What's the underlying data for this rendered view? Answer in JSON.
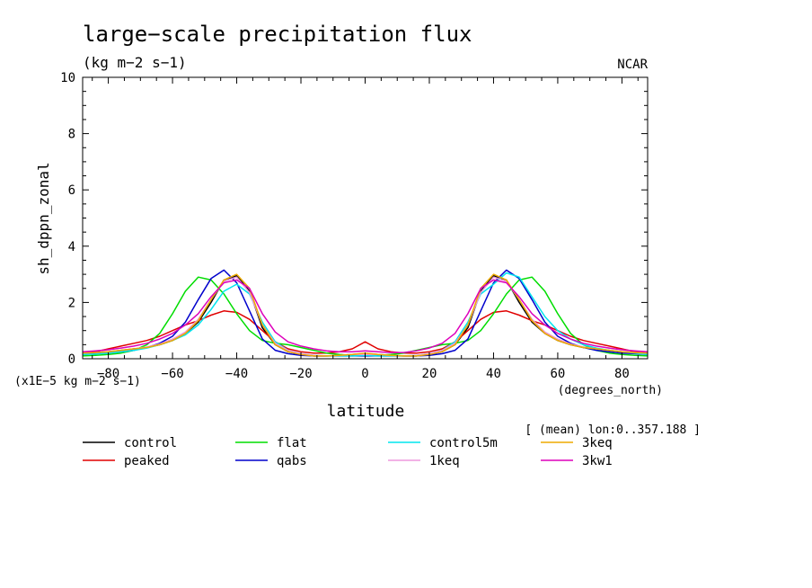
{
  "chart_data": {
    "type": "line",
    "title": "large−scale precipitation flux",
    "subtitle": "(kg m−2 s−1)",
    "credit": "NCAR",
    "xlabel": "latitude",
    "x_units": "(degrees_north)",
    "ylabel": "sh_dppn_zonal",
    "y_scale_note": "(x1E−5 kg m−2 s−1)",
    "mean_note": "[ (mean) lon:0..357.188 ]",
    "xlim": [
      -88,
      88
    ],
    "ylim": [
      0,
      10
    ],
    "x_ticks": [
      -80,
      -60,
      -40,
      -20,
      0,
      20,
      40,
      60,
      80
    ],
    "x_tick_labels": [
      "−80",
      "−60",
      "−40",
      "−20",
      "0",
      "20",
      "40",
      "60",
      "80"
    ],
    "y_ticks": [
      0,
      2,
      4,
      6,
      8,
      10
    ],
    "y_tick_labels": [
      "0",
      "2",
      "4",
      "6",
      "8",
      "10"
    ],
    "x": [
      -88,
      -84,
      -80,
      -76,
      -72,
      -68,
      -64,
      -60,
      -56,
      -52,
      -48,
      -44,
      -40,
      -36,
      -32,
      -28,
      -24,
      -20,
      -16,
      -12,
      -8,
      -4,
      0,
      4,
      8,
      12,
      16,
      20,
      24,
      28,
      32,
      36,
      40,
      44,
      48,
      52,
      56,
      60,
      64,
      68,
      72,
      76,
      80,
      84,
      88
    ],
    "series": [
      {
        "name": "control",
        "color": "#000000",
        "values": [
          0.2,
          0.22,
          0.25,
          0.3,
          0.35,
          0.4,
          0.5,
          0.65,
          0.9,
          1.3,
          2.0,
          2.8,
          2.95,
          2.4,
          1.1,
          0.5,
          0.25,
          0.15,
          0.1,
          0.1,
          0.12,
          0.15,
          0.18,
          0.15,
          0.12,
          0.1,
          0.1,
          0.15,
          0.25,
          0.5,
          1.1,
          2.4,
          2.95,
          2.8,
          2.0,
          1.3,
          0.9,
          0.65,
          0.5,
          0.4,
          0.35,
          0.3,
          0.25,
          0.22,
          0.2
        ]
      },
      {
        "name": "peaked",
        "color": "#e00000",
        "values": [
          0.2,
          0.25,
          0.35,
          0.45,
          0.55,
          0.65,
          0.8,
          1.0,
          1.2,
          1.35,
          1.55,
          1.7,
          1.65,
          1.4,
          1.0,
          0.6,
          0.35,
          0.25,
          0.2,
          0.2,
          0.25,
          0.35,
          0.6,
          0.35,
          0.25,
          0.2,
          0.2,
          0.25,
          0.35,
          0.6,
          1.0,
          1.4,
          1.65,
          1.7,
          1.55,
          1.35,
          1.2,
          1.0,
          0.8,
          0.65,
          0.55,
          0.45,
          0.35,
          0.25,
          0.2
        ]
      },
      {
        "name": "flat",
        "color": "#00dd00",
        "values": [
          0.1,
          0.12,
          0.15,
          0.2,
          0.3,
          0.5,
          0.9,
          1.6,
          2.4,
          2.9,
          2.8,
          2.3,
          1.6,
          1.0,
          0.65,
          0.55,
          0.5,
          0.4,
          0.3,
          0.2,
          0.15,
          0.12,
          0.1,
          0.12,
          0.15,
          0.2,
          0.3,
          0.4,
          0.5,
          0.55,
          0.65,
          1.0,
          1.6,
          2.3,
          2.8,
          2.9,
          2.4,
          1.6,
          0.9,
          0.5,
          0.3,
          0.2,
          0.15,
          0.12,
          0.1
        ]
      },
      {
        "name": "qabs",
        "color": "#0000cc",
        "values": [
          0.15,
          0.18,
          0.2,
          0.25,
          0.3,
          0.4,
          0.55,
          0.8,
          1.3,
          2.1,
          2.85,
          3.15,
          2.7,
          1.7,
          0.7,
          0.3,
          0.18,
          0.12,
          0.1,
          0.1,
          0.1,
          0.1,
          0.1,
          0.1,
          0.1,
          0.1,
          0.1,
          0.12,
          0.18,
          0.3,
          0.7,
          1.7,
          2.7,
          3.15,
          2.85,
          2.1,
          1.3,
          0.8,
          0.55,
          0.4,
          0.3,
          0.25,
          0.2,
          0.18,
          0.15
        ]
      },
      {
        "name": "control5m",
        "color": "#00e5ee",
        "values": [
          0.15,
          0.17,
          0.2,
          0.25,
          0.3,
          0.38,
          0.5,
          0.65,
          0.85,
          1.2,
          1.75,
          2.4,
          2.65,
          2.3,
          1.3,
          0.6,
          0.3,
          0.18,
          0.12,
          0.1,
          0.1,
          0.1,
          0.12,
          0.1,
          0.1,
          0.1,
          0.12,
          0.18,
          0.3,
          0.6,
          1.3,
          2.3,
          2.65,
          3.05,
          2.9,
          2.2,
          1.5,
          1.0,
          0.7,
          0.5,
          0.38,
          0.3,
          0.25,
          0.2,
          0.15
        ]
      },
      {
        "name": "1keq",
        "color": "#ee99dd",
        "values": [
          0.2,
          0.22,
          0.25,
          0.3,
          0.35,
          0.42,
          0.52,
          0.7,
          0.95,
          1.4,
          2.1,
          2.75,
          2.9,
          2.35,
          1.2,
          0.55,
          0.3,
          0.18,
          0.12,
          0.1,
          0.12,
          0.15,
          0.15,
          0.15,
          0.12,
          0.1,
          0.12,
          0.18,
          0.3,
          0.55,
          1.2,
          2.35,
          2.9,
          2.75,
          2.1,
          1.4,
          0.95,
          0.7,
          0.52,
          0.42,
          0.35,
          0.3,
          0.25,
          0.22,
          0.2
        ]
      },
      {
        "name": "3keq",
        "color": "#eeaa00",
        "values": [
          0.2,
          0.22,
          0.25,
          0.3,
          0.35,
          0.4,
          0.5,
          0.65,
          0.9,
          1.35,
          2.1,
          2.8,
          3.0,
          2.5,
          1.2,
          0.5,
          0.25,
          0.15,
          0.1,
          0.1,
          0.12,
          0.15,
          0.2,
          0.15,
          0.12,
          0.1,
          0.1,
          0.15,
          0.25,
          0.5,
          1.2,
          2.5,
          3.0,
          2.8,
          2.1,
          1.35,
          0.9,
          0.65,
          0.5,
          0.4,
          0.35,
          0.3,
          0.25,
          0.22,
          0.2
        ]
      },
      {
        "name": "3kw1",
        "color": "#dd00bb",
        "values": [
          0.25,
          0.28,
          0.32,
          0.38,
          0.45,
          0.55,
          0.7,
          0.9,
          1.2,
          1.6,
          2.2,
          2.7,
          2.8,
          2.5,
          1.6,
          0.95,
          0.6,
          0.45,
          0.35,
          0.28,
          0.25,
          0.25,
          0.28,
          0.25,
          0.22,
          0.22,
          0.28,
          0.38,
          0.55,
          0.9,
          1.6,
          2.5,
          2.8,
          2.7,
          2.2,
          1.6,
          1.2,
          0.9,
          0.7,
          0.55,
          0.45,
          0.38,
          0.32,
          0.28,
          0.25
        ]
      }
    ]
  }
}
